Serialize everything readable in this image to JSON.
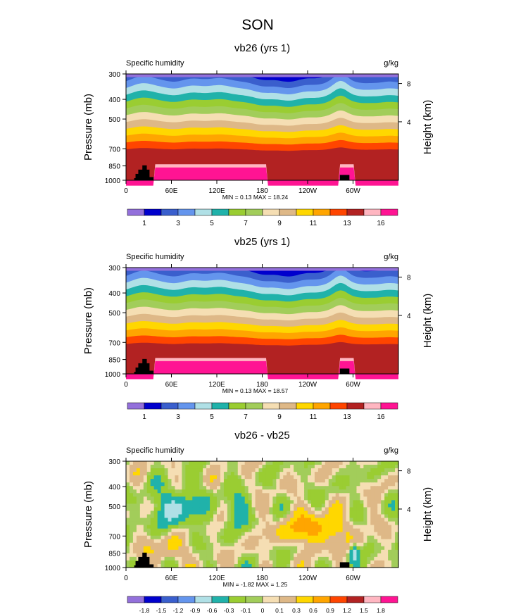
{
  "figure": {
    "title": "SON"
  },
  "colors": {
    "seq": [
      "#9370db",
      "#0000cd",
      "#3a5fcd",
      "#6495ed",
      "#b0e0e6",
      "#20b2aa",
      "#9acd32",
      "#a2cd5a",
      "#f5deb3",
      "#deb887",
      "#ffd700",
      "#ffa500",
      "#ff4500",
      "#b22222",
      "#ffb6c1",
      "#ff1493"
    ],
    "diff": [
      "#9370db",
      "#0000cd",
      "#3a5fcd",
      "#6495ed",
      "#b0e0e6",
      "#20b2aa",
      "#9acd32",
      "#a2cd5a",
      "#f5deb3",
      "#deb887",
      "#ffd700",
      "#ffa500",
      "#ff4500",
      "#b22222",
      "#ffb6c1",
      "#ff1493"
    ],
    "land": "#000000"
  },
  "chart_data": [
    {
      "type": "heatmap",
      "title": "vb26 (yrs 1)",
      "left_label": "Specific humidity",
      "right_label": "g/kg",
      "ylabel": "Pressure (mb)",
      "y2label": "Height (km)",
      "x_ticks": [
        "0",
        "60E",
        "120E",
        "180",
        "120W",
        "60W"
      ],
      "y_ticks": [
        "300",
        "400",
        "500",
        "700",
        "850",
        "1000"
      ],
      "y2_ticks": [
        "8",
        "4"
      ],
      "stats": "MIN =   0.13   MAX =   18.24",
      "min": 0.13,
      "max": 18.24,
      "colorbar_labels": [
        "1",
        "3",
        "5",
        "7",
        "9",
        "11",
        "13",
        "16"
      ],
      "colorbar_style": "seq"
    },
    {
      "type": "heatmap",
      "title": "vb25 (yrs 1)",
      "left_label": "Specific humidity",
      "right_label": "g/kg",
      "ylabel": "Pressure (mb)",
      "y2label": "Height (km)",
      "x_ticks": [
        "0",
        "60E",
        "120E",
        "180",
        "120W",
        "60W"
      ],
      "y_ticks": [
        "300",
        "400",
        "500",
        "700",
        "850",
        "1000"
      ],
      "y2_ticks": [
        "8",
        "4"
      ],
      "stats": "MIN =   0.13   MAX =   18.57",
      "min": 0.13,
      "max": 18.57,
      "colorbar_labels": [
        "1",
        "3",
        "5",
        "7",
        "9",
        "11",
        "13",
        "16"
      ],
      "colorbar_style": "seq"
    },
    {
      "type": "heatmap",
      "title": "vb26 - vb25",
      "left_label": "Specific humidity",
      "right_label": "g/kg",
      "ylabel": "Pressure (mb)",
      "y2label": "Height (km)",
      "x_ticks": [
        "0",
        "60E",
        "120E",
        "180",
        "120W",
        "60W"
      ],
      "y_ticks": [
        "300",
        "400",
        "500",
        "700",
        "850",
        "1000"
      ],
      "y2_ticks": [
        "8",
        "4"
      ],
      "stats": "MIN =  -1.82   MAX =   1.25",
      "min": -1.82,
      "max": 1.25,
      "colorbar_labels": [
        "-1.8",
        "-1.5",
        "-1.2",
        "-0.9",
        "-0.6",
        "-0.3",
        "-0.1",
        "0",
        "0.1",
        "0.3",
        "0.6",
        "0.9",
        "1.2",
        "1.5",
        "1.8"
      ],
      "colorbar_style": "diff"
    }
  ]
}
